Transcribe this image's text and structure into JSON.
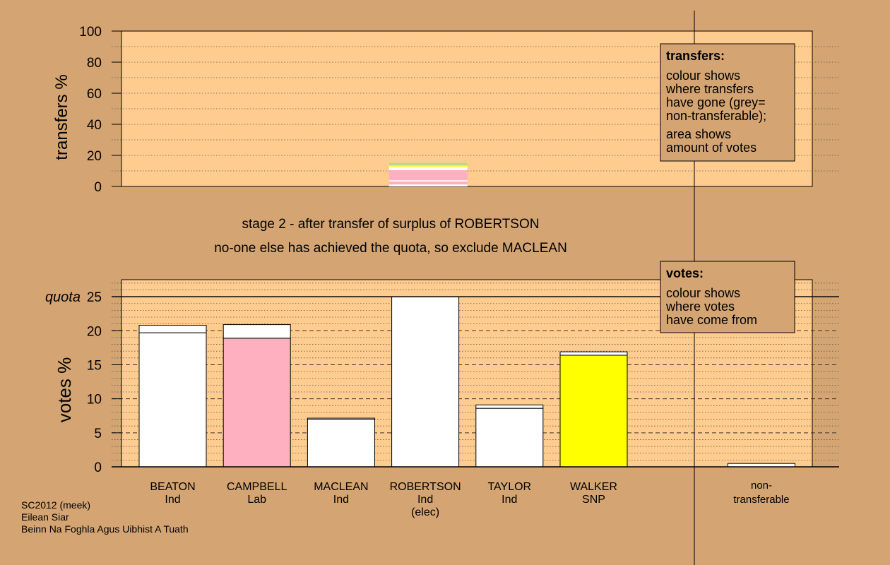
{
  "stage_title": "stage 2 - after transfer of surplus of ROBERTSON",
  "stage_subtitle": "no-one else has achieved the quota, so exclude MACLEAN",
  "footer": {
    "line1": "SC2012 (meek)",
    "line2": "Eilean Siar",
    "line3": "Beinn Na Foghla Agus Uibhist A Tuath"
  },
  "legend_transfers": {
    "title": "transfers:",
    "text1": [
      "colour shows",
      "where transfers",
      "have gone (grey=",
      "non-transferable);"
    ],
    "text2": [
      "area shows",
      "amount of votes"
    ]
  },
  "legend_votes": {
    "title": "votes:",
    "text": [
      "colour shows",
      "where votes",
      "have come from"
    ]
  },
  "colors": {
    "background": "#d4a573",
    "plot_background": "#ffcc8f",
    "white": "#ffffff",
    "campbell_pink": "#ffb0c0",
    "walker_yellow": "#ffff00",
    "transfer_green": "#b8d890"
  },
  "chart_data": [
    {
      "type": "bar",
      "name": "transfers",
      "ylabel": "transfers %",
      "ylim": [
        0,
        100
      ],
      "yticks": [
        0,
        20,
        40,
        60,
        80,
        100
      ],
      "grid": true,
      "transfer_from": "ROBERTSON",
      "stack_segments": [
        {
          "from": 0,
          "to": 1.3,
          "color": "#ffffff"
        },
        {
          "from": 1.3,
          "to": 3.2,
          "color": "#ffb0c0"
        },
        {
          "from": 3.2,
          "to": 4.0,
          "color": "#ffffff"
        },
        {
          "from": 4.0,
          "to": 10.5,
          "color": "#ffb0c0"
        },
        {
          "from": 10.5,
          "to": 12.8,
          "color": "#ffffff"
        },
        {
          "from": 12.8,
          "to": 13.6,
          "color": "#ffff00"
        },
        {
          "from": 13.6,
          "to": 15.2,
          "color": "#b8d890"
        }
      ]
    },
    {
      "type": "bar",
      "name": "votes",
      "ylabel": "votes %",
      "ylim": [
        0,
        27.5
      ],
      "yticks": [
        0,
        5,
        10,
        15,
        20,
        25
      ],
      "quota": 25,
      "quota_label": "quota",
      "grid": true,
      "categories": [
        {
          "name": "BEATON",
          "party": "Ind",
          "note": "",
          "base": 19.7,
          "base_color": "#ffffff",
          "top": 1.1,
          "top_color": "#ffffff"
        },
        {
          "name": "CAMPBELL",
          "party": "Lab",
          "note": "",
          "base": 18.9,
          "base_color": "#ffb0c0",
          "top": 2.0,
          "top_color": "#ffffff"
        },
        {
          "name": "MACLEAN",
          "party": "Ind",
          "note": "",
          "base": 7.0,
          "base_color": "#ffffff",
          "top": 0.15,
          "top_color": "#ffffff"
        },
        {
          "name": "ROBERTSON",
          "party": "Ind",
          "note": "(elec)",
          "base": 25.0,
          "base_color": "#ffffff",
          "top": 0,
          "top_color": "#ffffff"
        },
        {
          "name": "TAYLOR",
          "party": "Ind",
          "note": "",
          "base": 8.6,
          "base_color": "#ffffff",
          "top": 0.5,
          "top_color": "#ffffff"
        },
        {
          "name": "WALKER",
          "party": "SNP",
          "note": "",
          "base": 16.4,
          "base_color": "#ffff00",
          "top": 0.5,
          "top_color": "#ffffff"
        }
      ],
      "nontransferable": {
        "label1": "non-",
        "label2": "transferable",
        "value": 0.5
      }
    }
  ]
}
